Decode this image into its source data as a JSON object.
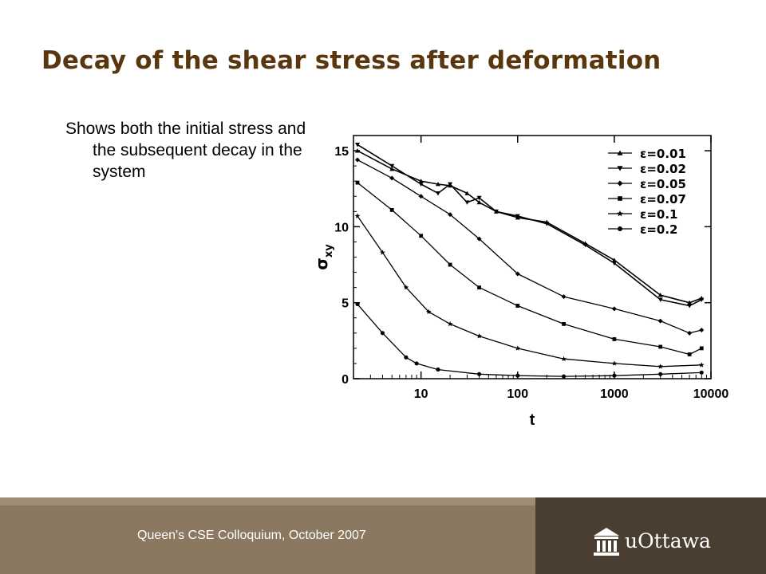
{
  "slide": {
    "title": "Decay of the shear stress after deformation",
    "bullet": "Shows both the initial stress and the subsequent decay in the system"
  },
  "footer": {
    "text": "Queen's CSE Colloquium, October 2007",
    "logo_text": "uOttawa",
    "colors": {
      "band": "#8a7960",
      "band_light": "#9e8e75",
      "logo_panel": "#4a3e31"
    }
  },
  "chart_data": {
    "type": "line",
    "x_scale": "log",
    "xlim": [
      2,
      10000
    ],
    "ylim": [
      0,
      16
    ],
    "xticks": [
      "10",
      "100",
      "1000",
      "10000"
    ],
    "yticks": [
      "0",
      "5",
      "10",
      "15"
    ],
    "xlabel": "t",
    "ylabel": "σ",
    "ylabel_sub": "xy",
    "legend_position": "top-right",
    "series": [
      {
        "name": "ε=0.01",
        "marker": "triangle-up",
        "x": [
          2.2,
          5,
          10,
          15,
          20,
          30,
          40,
          60,
          100,
          200,
          500,
          1000,
          3000,
          6000,
          8000
        ],
        "y": [
          15.0,
          13.8,
          13.0,
          12.8,
          12.7,
          12.2,
          11.6,
          11.0,
          10.6,
          10.3,
          8.9,
          7.8,
          5.5,
          5.0,
          5.3
        ]
      },
      {
        "name": "ε=0.02",
        "marker": "triangle-down",
        "x": [
          2.2,
          5,
          10,
          15,
          20,
          30,
          40,
          60,
          100,
          200,
          500,
          1000,
          3000,
          6000,
          8000
        ],
        "y": [
          15.4,
          14.0,
          12.8,
          12.2,
          12.8,
          11.6,
          11.9,
          11.0,
          10.7,
          10.2,
          8.8,
          7.6,
          5.2,
          4.8,
          5.2
        ]
      },
      {
        "name": "ε=0.05",
        "marker": "diamond",
        "x": [
          2.2,
          5,
          10,
          20,
          40,
          100,
          300,
          1000,
          3000,
          6000,
          8000
        ],
        "y": [
          14.4,
          13.2,
          12.0,
          10.8,
          9.2,
          6.9,
          5.4,
          4.6,
          3.8,
          3.0,
          3.2
        ]
      },
      {
        "name": "ε=0.07",
        "marker": "square",
        "x": [
          2.2,
          5,
          10,
          20,
          40,
          100,
          300,
          1000,
          3000,
          6000,
          8000
        ],
        "y": [
          12.9,
          11.1,
          9.4,
          7.5,
          6.0,
          4.8,
          3.6,
          2.6,
          2.1,
          1.6,
          2.0
        ]
      },
      {
        "name": "ε=0.1",
        "marker": "star",
        "x": [
          2.2,
          4,
          7,
          12,
          20,
          40,
          100,
          300,
          1000,
          3000,
          8000
        ],
        "y": [
          10.7,
          8.3,
          6.0,
          4.4,
          3.6,
          2.8,
          2.0,
          1.3,
          1.0,
          0.8,
          0.9
        ]
      },
      {
        "name": "ε=0.2",
        "marker": "circle",
        "x": [
          2.2,
          4,
          7,
          9,
          15,
          40,
          100,
          300,
          1000,
          3000,
          8000
        ],
        "y": [
          4.9,
          3.0,
          1.4,
          1.0,
          0.6,
          0.3,
          0.2,
          0.15,
          0.2,
          0.3,
          0.4
        ]
      }
    ]
  }
}
